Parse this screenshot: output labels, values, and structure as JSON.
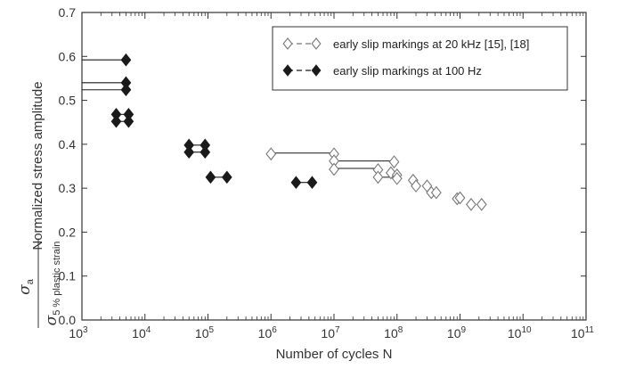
{
  "chart_data": {
    "type": "scatter",
    "xscale": "log",
    "xlim": [
      1000,
      100000000000
    ],
    "ylim": [
      0.0,
      0.7
    ],
    "x_tick_exponents": [
      3,
      4,
      5,
      6,
      7,
      8,
      9,
      10,
      11
    ],
    "x_tick_base": "10",
    "y_ticks": [
      "0.0",
      "0.1",
      "0.2",
      "0.3",
      "0.4",
      "0.5",
      "0.6",
      "0.7"
    ],
    "xlabel": "Number of cycles N",
    "ylabel": {
      "prefix": "Normalized stress amplitude",
      "numerator": "σ",
      "numerator_sub": "a",
      "denominator": "σ",
      "denominator_sub": "5 % plastic strain"
    },
    "legend_position": "top-right",
    "series": [
      {
        "name": "early slip markings at 20 kHz [15], [18]",
        "marker": "diamond-open",
        "color": "#777777",
        "points": [
          {
            "x": 1000000,
            "y": 0.378
          },
          {
            "x": 10000000,
            "y": 0.378
          },
          {
            "x": 10000000,
            "y": 0.362
          },
          {
            "x": 10000000,
            "y": 0.343
          },
          {
            "x": 90000000,
            "y": 0.36
          },
          {
            "x": 50000000,
            "y": 0.342
          },
          {
            "x": 50000000,
            "y": 0.325
          },
          {
            "x": 80000000,
            "y": 0.335
          },
          {
            "x": 100000000,
            "y": 0.33
          },
          {
            "x": 100000000,
            "y": 0.322
          },
          {
            "x": 180000000,
            "y": 0.318
          },
          {
            "x": 200000000,
            "y": 0.305
          },
          {
            "x": 300000000,
            "y": 0.305
          },
          {
            "x": 350000000,
            "y": 0.29
          },
          {
            "x": 420000000,
            "y": 0.29
          },
          {
            "x": 900000000,
            "y": 0.276
          },
          {
            "x": 1000000000,
            "y": 0.278
          },
          {
            "x": 1500000000,
            "y": 0.263
          },
          {
            "x": 2200000000,
            "y": 0.263
          }
        ],
        "runout_lines": [
          {
            "x1": 1000000,
            "x2": 10000000,
            "y": 0.38
          },
          {
            "x1": 10000000,
            "x2": 90000000,
            "y": 0.362
          },
          {
            "x1": 10000000,
            "x2": 50000000,
            "y": 0.345
          },
          {
            "x1": 50000000,
            "x2": 100000000,
            "y": 0.325
          }
        ]
      },
      {
        "name": "early slip markings at 100 Hz",
        "marker": "diamond-filled",
        "color": "#1a1a1a",
        "points": [
          {
            "x": 5000,
            "y": 0.592
          },
          {
            "x": 5000,
            "y": 0.54
          },
          {
            "x": 5000,
            "y": 0.524
          },
          {
            "x": 3500,
            "y": 0.468
          },
          {
            "x": 5500,
            "y": 0.468
          },
          {
            "x": 3500,
            "y": 0.452
          },
          {
            "x": 5500,
            "y": 0.452
          },
          {
            "x": 50000,
            "y": 0.398
          },
          {
            "x": 90000,
            "y": 0.398
          },
          {
            "x": 50000,
            "y": 0.382
          },
          {
            "x": 90000,
            "y": 0.382
          },
          {
            "x": 110000,
            "y": 0.325
          },
          {
            "x": 200000,
            "y": 0.325
          },
          {
            "x": 2500000,
            "y": 0.313
          },
          {
            "x": 4500000,
            "y": 0.313
          }
        ],
        "runout_lines": [
          {
            "x1": 1000,
            "x2": 5000,
            "y": 0.592
          },
          {
            "x1": 1000,
            "x2": 5000,
            "y": 0.54
          },
          {
            "x1": 1000,
            "x2": 5000,
            "y": 0.524
          },
          {
            "x1": 3500,
            "x2": 5500,
            "y": 0.468
          },
          {
            "x1": 3500,
            "x2": 5500,
            "y": 0.452
          },
          {
            "x1": 50000,
            "x2": 90000,
            "y": 0.398
          },
          {
            "x1": 50000,
            "x2": 90000,
            "y": 0.382
          },
          {
            "x1": 110000,
            "x2": 200000,
            "y": 0.325
          },
          {
            "x1": 2500000,
            "x2": 4500000,
            "y": 0.313
          }
        ]
      }
    ]
  }
}
